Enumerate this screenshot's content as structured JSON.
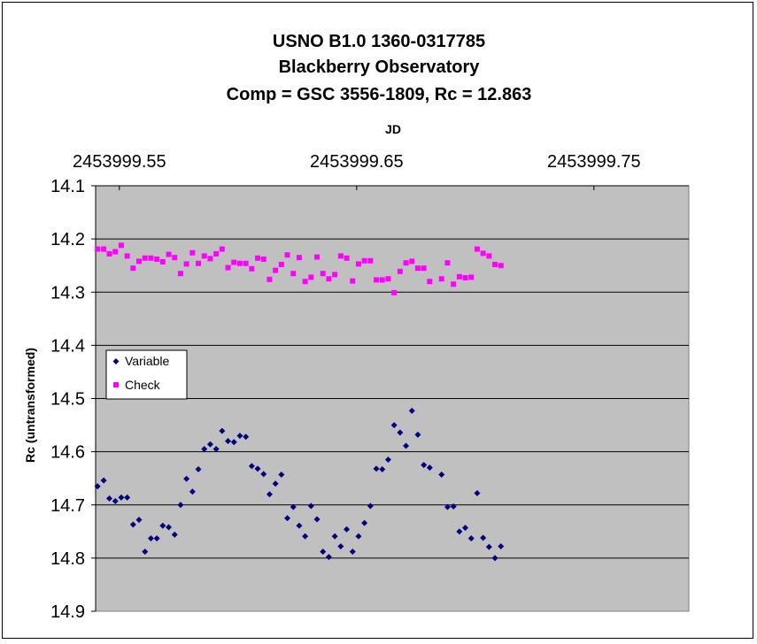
{
  "chart_data": {
    "type": "scatter",
    "title": [
      "USNO B1.0 1360-0317785",
      "Blackberry Observatory",
      "Comp = GSC 3556-1809, Rc = 12.863"
    ],
    "xlabel": "JD",
    "ylabel": "Rc (untransformed)",
    "x_axis_position": "top",
    "x_ticks": [
      2453999.55,
      2453999.65,
      2453999.75
    ],
    "x_tick_labels": [
      "2453999.55",
      "2453999.65",
      "2453999.75"
    ],
    "xlim": [
      2453999.54,
      2453999.79
    ],
    "ylim": [
      14.1,
      14.9
    ],
    "y_reversed": true,
    "y_ticks": [
      14.1,
      14.2,
      14.3,
      14.4,
      14.5,
      14.6,
      14.7,
      14.8,
      14.9
    ],
    "y_tick_labels": [
      "14.1",
      "14.2",
      "14.3",
      "14.4",
      "14.5",
      "14.6",
      "14.7",
      "14.8",
      "14.9"
    ],
    "grid": "horizontal",
    "plot_background": "#c0c0c0",
    "legend": {
      "placement": "left-middle",
      "entries": [
        "Variable",
        "Check"
      ]
    },
    "series": [
      {
        "name": "Variable",
        "marker": "diamond",
        "color": "#000080",
        "points": [
          [
            2453999.5408,
            14.665
          ],
          [
            2453999.5434,
            14.654
          ],
          [
            2453999.5458,
            14.688
          ],
          [
            2453999.5483,
            14.693
          ],
          [
            2453999.5508,
            14.686
          ],
          [
            2453999.5533,
            14.686
          ],
          [
            2453999.5558,
            14.737
          ],
          [
            2453999.5583,
            14.728
          ],
          [
            2453999.5608,
            14.788
          ],
          [
            2453999.5633,
            14.763
          ],
          [
            2453999.5658,
            14.763
          ],
          [
            2453999.5683,
            14.739
          ],
          [
            2453999.5708,
            14.742
          ],
          [
            2453999.5733,
            14.756
          ],
          [
            2453999.5758,
            14.7
          ],
          [
            2453999.5783,
            14.651
          ],
          [
            2453999.5808,
            14.675
          ],
          [
            2453999.5833,
            14.633
          ],
          [
            2453999.5858,
            14.595
          ],
          [
            2453999.5883,
            14.586
          ],
          [
            2453999.5908,
            14.595
          ],
          [
            2453999.5933,
            14.561
          ],
          [
            2453999.5958,
            14.58
          ],
          [
            2453999.5983,
            14.582
          ],
          [
            2453999.6008,
            14.57
          ],
          [
            2453999.6033,
            14.572
          ],
          [
            2453999.6058,
            14.627
          ],
          [
            2453999.6083,
            14.632
          ],
          [
            2453999.6108,
            14.642
          ],
          [
            2453999.6133,
            14.68
          ],
          [
            2453999.6158,
            14.66
          ],
          [
            2453999.6183,
            14.643
          ],
          [
            2453999.6208,
            14.725
          ],
          [
            2453999.6233,
            14.704
          ],
          [
            2453999.6258,
            14.739
          ],
          [
            2453999.6283,
            14.759
          ],
          [
            2453999.6308,
            14.702
          ],
          [
            2453999.6333,
            14.727
          ],
          [
            2453999.6358,
            14.788
          ],
          [
            2453999.6383,
            14.798
          ],
          [
            2453999.6408,
            14.759
          ],
          [
            2453999.6433,
            14.778
          ],
          [
            2453999.6458,
            14.746
          ],
          [
            2453999.6483,
            14.788
          ],
          [
            2453999.6508,
            14.759
          ],
          [
            2453999.6533,
            14.734
          ],
          [
            2453999.6558,
            14.702
          ],
          [
            2453999.6583,
            14.632
          ],
          [
            2453999.6608,
            14.633
          ],
          [
            2453999.6633,
            14.615
          ],
          [
            2453999.6658,
            14.55
          ],
          [
            2453999.6683,
            14.564
          ],
          [
            2453999.6708,
            14.589
          ],
          [
            2453999.6733,
            14.523
          ],
          [
            2453999.6758,
            14.568
          ],
          [
            2453999.6783,
            14.625
          ],
          [
            2453999.6808,
            14.63
          ],
          [
            2453999.6858,
            14.643
          ],
          [
            2453999.6883,
            14.704
          ],
          [
            2453999.6908,
            14.703
          ],
          [
            2453999.6933,
            14.75
          ],
          [
            2453999.6958,
            14.743
          ],
          [
            2453999.6983,
            14.763
          ],
          [
            2453999.7008,
            14.678
          ],
          [
            2453999.7033,
            14.762
          ],
          [
            2453999.7058,
            14.779
          ],
          [
            2453999.7083,
            14.8
          ],
          [
            2453999.7108,
            14.778
          ]
        ]
      },
      {
        "name": "Check",
        "marker": "square",
        "color": "#ff00ff",
        "points": [
          [
            2453999.5408,
            14.219
          ],
          [
            2453999.5434,
            14.219
          ],
          [
            2453999.5458,
            14.228
          ],
          [
            2453999.5483,
            14.224
          ],
          [
            2453999.5508,
            14.212
          ],
          [
            2453999.5533,
            14.232
          ],
          [
            2453999.5558,
            14.255
          ],
          [
            2453999.5583,
            14.242
          ],
          [
            2453999.5608,
            14.236
          ],
          [
            2453999.5633,
            14.236
          ],
          [
            2453999.5658,
            14.238
          ],
          [
            2453999.5683,
            14.243
          ],
          [
            2453999.5708,
            14.229
          ],
          [
            2453999.5733,
            14.235
          ],
          [
            2453999.5758,
            14.265
          ],
          [
            2453999.5783,
            14.247
          ],
          [
            2453999.5808,
            14.226
          ],
          [
            2453999.5833,
            14.246
          ],
          [
            2453999.5858,
            14.232
          ],
          [
            2453999.5883,
            14.237
          ],
          [
            2453999.5908,
            14.228
          ],
          [
            2453999.5933,
            14.219
          ],
          [
            2453999.5958,
            14.254
          ],
          [
            2453999.5983,
            14.244
          ],
          [
            2453999.6008,
            14.246
          ],
          [
            2453999.6033,
            14.246
          ],
          [
            2453999.6058,
            14.256
          ],
          [
            2453999.6083,
            14.236
          ],
          [
            2453999.6108,
            14.238
          ],
          [
            2453999.6133,
            14.276
          ],
          [
            2453999.6158,
            14.259
          ],
          [
            2453999.6183,
            14.248
          ],
          [
            2453999.6208,
            14.23
          ],
          [
            2453999.6233,
            14.265
          ],
          [
            2453999.6258,
            14.235
          ],
          [
            2453999.6283,
            14.28
          ],
          [
            2453999.6308,
            14.272
          ],
          [
            2453999.6333,
            14.234
          ],
          [
            2453999.6358,
            14.265
          ],
          [
            2453999.6383,
            14.275
          ],
          [
            2453999.6408,
            14.267
          ],
          [
            2453999.6433,
            14.232
          ],
          [
            2453999.6458,
            14.236
          ],
          [
            2453999.6483,
            14.279
          ],
          [
            2453999.6508,
            14.247
          ],
          [
            2453999.6533,
            14.241
          ],
          [
            2453999.6558,
            14.241
          ],
          [
            2453999.6583,
            14.277
          ],
          [
            2453999.6608,
            14.277
          ],
          [
            2453999.6633,
            14.275
          ],
          [
            2453999.6658,
            14.301
          ],
          [
            2453999.6683,
            14.261
          ],
          [
            2453999.6708,
            14.245
          ],
          [
            2453999.6733,
            14.242
          ],
          [
            2453999.6758,
            14.255
          ],
          [
            2453999.6783,
            14.255
          ],
          [
            2453999.6808,
            14.28
          ],
          [
            2453999.6858,
            14.275
          ],
          [
            2453999.6883,
            14.245
          ],
          [
            2453999.6908,
            14.285
          ],
          [
            2453999.6933,
            14.271
          ],
          [
            2453999.6958,
            14.273
          ],
          [
            2453999.6983,
            14.272
          ],
          [
            2453999.7008,
            14.219
          ],
          [
            2453999.7033,
            14.227
          ],
          [
            2453999.7058,
            14.232
          ],
          [
            2453999.7083,
            14.248
          ],
          [
            2453999.7108,
            14.25
          ]
        ]
      }
    ]
  }
}
